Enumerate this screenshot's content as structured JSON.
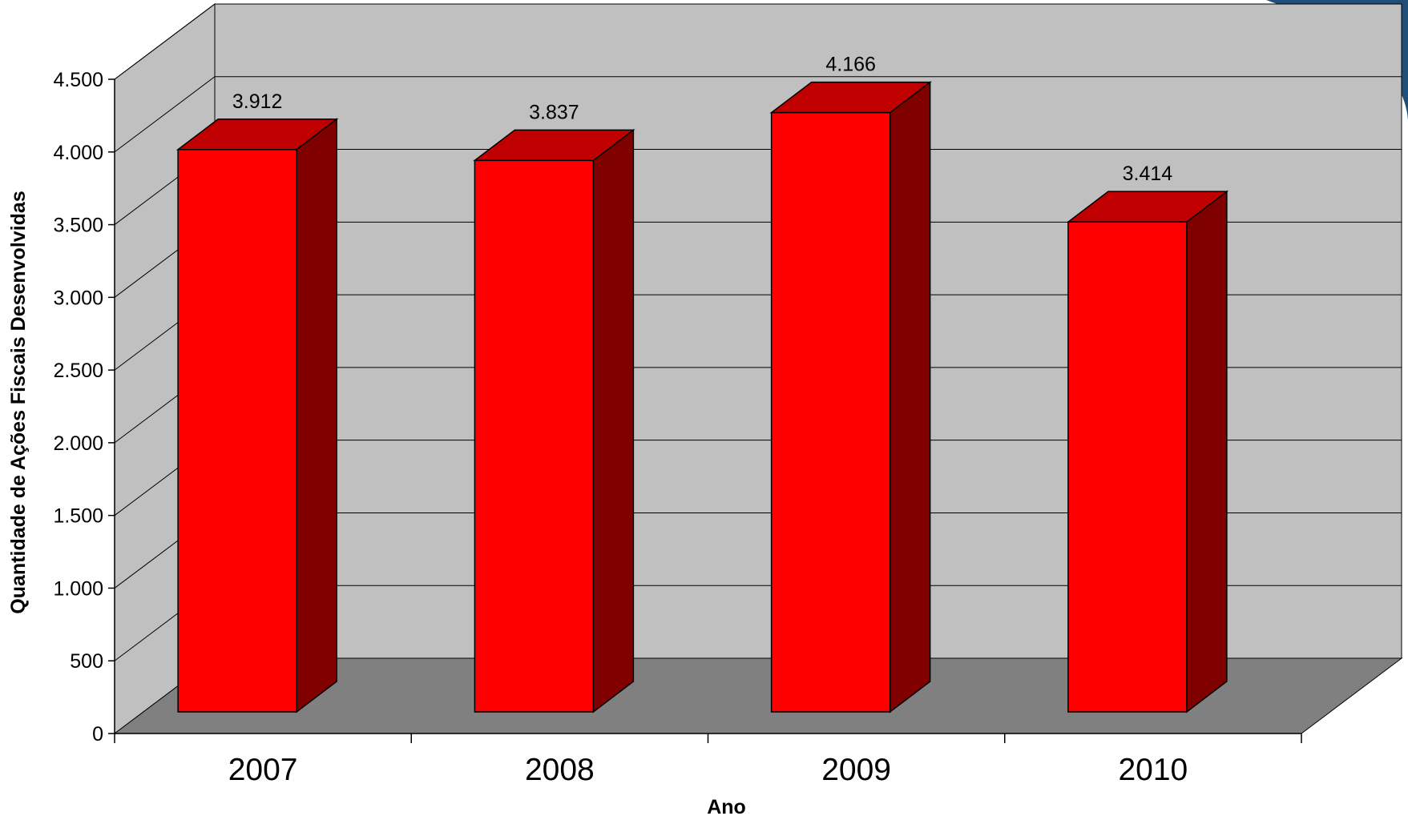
{
  "chart_data": {
    "type": "bar",
    "style": "3d-column",
    "categories": [
      "2007",
      "2008",
      "2009",
      "2010"
    ],
    "values": [
      3912,
      3837,
      4166,
      3414
    ],
    "value_labels": [
      "3.912",
      "3.837",
      "4.166",
      "3.414"
    ],
    "xlabel": "Ano",
    "ylabel": "Quantidade de Ações Fiscais Desenvolvidas",
    "ylim": [
      0,
      4500
    ],
    "yticks": [
      0,
      500,
      1000,
      1500,
      2000,
      2500,
      3000,
      3500,
      4000,
      4500
    ],
    "ytick_labels": [
      "0",
      "500",
      "1.000",
      "1.500",
      "2.000",
      "2.500",
      "3.000",
      "3.500",
      "4.000",
      "4.500"
    ],
    "grid": true,
    "legend": "none"
  },
  "colors": {
    "bar_front": "#ff0000",
    "bar_top": "#c00000",
    "bar_side": "#800000",
    "back_wall": "#c0c0c0",
    "side_wall": "#c0c0c0",
    "floor": "#808080",
    "corner_accent": "#1f4e79"
  }
}
